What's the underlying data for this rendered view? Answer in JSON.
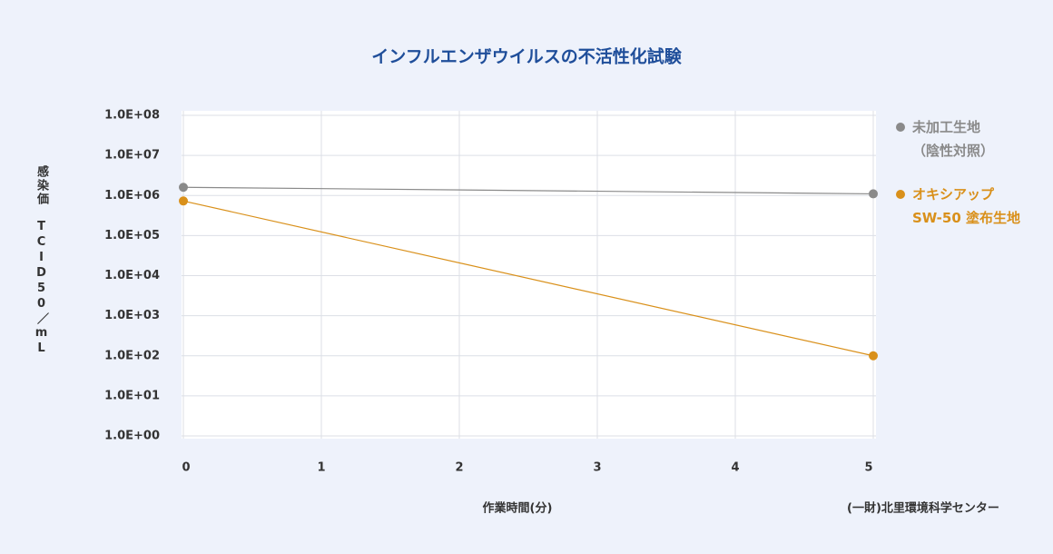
{
  "chart_data": {
    "type": "line",
    "title": "インフルエンザウイルスの不活性化試験",
    "x_label": "作業時間(分)",
    "y_label": "感染価　TCID50／mL",
    "source": "(一財)北里環境科学センター",
    "log_y": true,
    "grid": true,
    "xlim": [
      0,
      5
    ],
    "xticks": [
      0,
      1,
      2,
      3,
      4,
      5
    ],
    "ylim": [
      1,
      100000000
    ],
    "yticks": [
      {
        "value": 1,
        "label": "1.0E+00"
      },
      {
        "value": 10,
        "label": "1.0E+01"
      },
      {
        "value": 100,
        "label": "1.0E+02"
      },
      {
        "value": 1000,
        "label": "1.0E+03"
      },
      {
        "value": 10000,
        "label": "1.0E+04"
      },
      {
        "value": 100000,
        "label": "1.0E+05"
      },
      {
        "value": 1000000,
        "label": "1.0E+06"
      },
      {
        "value": 10000000,
        "label": "1.0E+07"
      },
      {
        "value": 100000000,
        "label": "1.0E+08"
      }
    ],
    "x": [
      0,
      5
    ],
    "series": [
      {
        "name": "未加工生地\n（陰性対照）",
        "color": "#8a8a8a",
        "values": [
          1600000,
          1100000
        ]
      },
      {
        "name": "オキシアップ\nSW-50 塗布生地",
        "color": "#d9901a",
        "values": [
          730000,
          100
        ]
      }
    ]
  }
}
